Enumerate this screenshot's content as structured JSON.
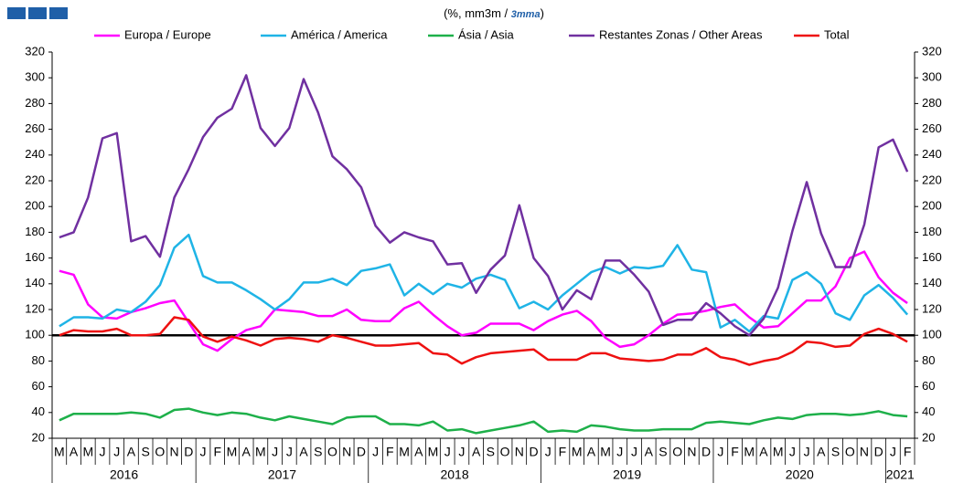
{
  "chart_data": {
    "type": "line",
    "subtitle": [
      "(%, mm3m / ",
      "3mma",
      ")"
    ],
    "categories": [
      "M",
      "A",
      "M",
      "J",
      "J",
      "A",
      "S",
      "O",
      "N",
      "D",
      "J",
      "F",
      "M",
      "A",
      "M",
      "J",
      "J",
      "A",
      "S",
      "O",
      "N",
      "D",
      "J",
      "F",
      "M",
      "A",
      "M",
      "J",
      "J",
      "A",
      "S",
      "O",
      "N",
      "D",
      "J",
      "F",
      "M",
      "A",
      "M",
      "J",
      "J",
      "A",
      "S",
      "O",
      "N",
      "D",
      "J",
      "F",
      "M",
      "A",
      "M",
      "J",
      "J",
      "A",
      "S",
      "O",
      "N",
      "D",
      "J",
      "F"
    ],
    "x_groups": [
      {
        "label": "2016",
        "count": 10
      },
      {
        "label": "2017",
        "count": 12
      },
      {
        "label": "2018",
        "count": 12
      },
      {
        "label": "2019",
        "count": 12
      },
      {
        "label": "2020",
        "count": 12
      },
      {
        "label": "2021",
        "count": 2
      }
    ],
    "series": [
      {
        "name": "Europa / Europe",
        "color": "#ff00ff",
        "values": [
          150,
          147,
          124,
          114,
          113,
          118,
          121,
          125,
          127,
          110,
          93,
          88,
          97,
          104,
          107,
          120,
          119,
          118,
          115,
          115,
          120,
          112,
          111,
          111,
          121,
          126,
          116,
          107,
          100,
          102,
          109,
          109,
          109,
          104,
          111,
          116,
          119,
          111,
          98,
          91,
          93,
          100,
          109,
          116,
          117,
          119,
          122,
          124,
          114,
          106,
          107,
          117,
          127,
          127,
          138,
          160,
          165,
          145,
          133,
          125
        ]
      },
      {
        "name": "América / America",
        "color": "#1fb4e6",
        "values": [
          107,
          114,
          114,
          113,
          120,
          118,
          126,
          139,
          168,
          178,
          146,
          141,
          141,
          135,
          128,
          120,
          128,
          141,
          141,
          144,
          139,
          150,
          152,
          155,
          131,
          140,
          132,
          140,
          137,
          144,
          147,
          143,
          121,
          126,
          120,
          131,
          140,
          149,
          153,
          148,
          153,
          152,
          154,
          170,
          151,
          149,
          106,
          112,
          103,
          115,
          113,
          143,
          149,
          140,
          117,
          112,
          131,
          139,
          129,
          116
        ]
      },
      {
        "name": "Ásia / Asia",
        "color": "#1eb04a",
        "values": [
          34,
          39,
          39,
          39,
          39,
          40,
          39,
          36,
          42,
          43,
          40,
          38,
          40,
          39,
          36,
          34,
          37,
          35,
          33,
          31,
          36,
          37,
          37,
          31,
          31,
          30,
          33,
          26,
          27,
          24,
          26,
          28,
          30,
          33,
          25,
          26,
          25,
          30,
          29,
          27,
          26,
          26,
          27,
          27,
          27,
          32,
          33,
          32,
          31,
          34,
          36,
          35,
          38,
          39,
          39,
          38,
          39,
          41,
          38,
          37
        ]
      },
      {
        "name": "Restantes Zonas / Other Areas",
        "color": "#7030a0",
        "values": [
          176,
          180,
          207,
          253,
          257,
          173,
          177,
          161,
          207,
          229,
          254,
          269,
          276,
          302,
          261,
          247,
          261,
          299,
          273,
          239,
          229,
          215,
          185,
          172,
          180,
          176,
          173,
          155,
          156,
          133,
          151,
          162,
          201,
          160,
          146,
          120,
          135,
          128,
          158,
          158,
          147,
          134,
          108,
          112,
          112,
          125,
          117,
          107,
          100,
          113,
          137,
          181,
          219,
          179,
          153,
          153,
          186,
          246,
          252,
          227
        ]
      },
      {
        "name": "Total",
        "color": "#ee1111",
        "values": [
          100,
          104,
          103,
          103,
          105,
          100,
          100,
          101,
          114,
          112,
          99,
          95,
          99,
          96,
          92,
          97,
          98,
          97,
          95,
          100,
          98,
          95,
          92,
          92,
          93,
          94,
          86,
          85,
          78,
          83,
          86,
          87,
          88,
          89,
          81,
          81,
          81,
          86,
          86,
          82,
          81,
          80,
          81,
          85,
          85,
          90,
          83,
          81,
          77,
          80,
          82,
          87,
          95,
          94,
          91,
          92,
          101,
          105,
          101,
          95
        ]
      }
    ],
    "ylim": [
      20,
      320
    ],
    "yticks": [
      20,
      40,
      60,
      80,
      100,
      120,
      140,
      160,
      180,
      200,
      220,
      240,
      260,
      280,
      300,
      320
    ],
    "y2lim": [
      20,
      320
    ],
    "y2ticks": [
      20,
      40,
      60,
      80,
      100,
      120,
      140,
      160,
      180,
      200,
      220,
      240,
      260,
      280,
      300,
      320
    ],
    "reference_line": 100,
    "grid": false,
    "legend": "top"
  }
}
